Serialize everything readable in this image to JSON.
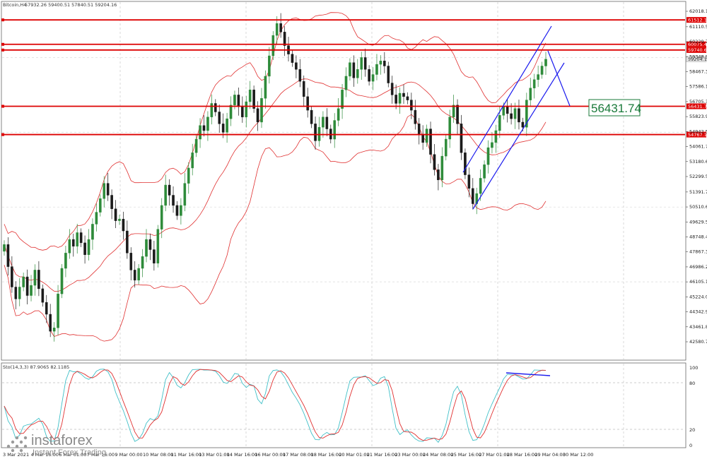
{
  "header": {
    "symbol": "Bitcoin,H4",
    "ohlc": "57932.26 59400.51 57840.51 59204.16"
  },
  "indicator": {
    "label": "Sto(14,3,3) 87.9065 82.1185",
    "levels": [
      "100",
      "80",
      "20",
      "0"
    ]
  },
  "callout": {
    "value": "56431.74"
  },
  "logo": {
    "text": "instaforex",
    "tagline": "Instant Forex Trading"
  },
  "colors": {
    "bull": "#2e8b3a",
    "bear": "#1b1b1b",
    "bands": "#e03030",
    "levels": "#dd0000",
    "channel": "#1a1aee",
    "stoch_main": "#e03030",
    "stoch_signal": "#40c0c8"
  },
  "chart_data": {
    "type": "candlestick",
    "price_axis": {
      "ticks": [
        "62018.10",
        "61110.50",
        "60229.70",
        "59348.90",
        "58467.30",
        "57586.10",
        "56705.30",
        "55823.90",
        "54942.50",
        "54061.70",
        "53180.60",
        "52299.50",
        "51391.70",
        "50510.60",
        "49629.50",
        "48748.40",
        "47867.30",
        "46986.20",
        "46105.10",
        "45224.00",
        "44342.90",
        "43461.80",
        "42580.70"
      ],
      "range": [
        42580.7,
        62018.1
      ]
    },
    "time_axis": {
      "ticks": [
        "3 Mar 2021",
        "4 Mar 16:00",
        "6 Mar 01:00",
        "7 Mar 16:00",
        "9 Mar 00:00",
        "10 Mar 08:00",
        "11 Mar 16:00",
        "13 Mar 01:00",
        "14 Mar 16:00",
        "16 Mar 00:00",
        "17 Mar 08:00",
        "18 Mar 16:00",
        "20 Mar 01:00",
        "21 Mar 16:00",
        "23 Mar 00:00",
        "24 Mar 08:00",
        "25 Mar 16:00",
        "27 Mar 01:00",
        "28 Mar 16:00",
        "29 Mar 04:00",
        "30 Mar 12:00"
      ]
    },
    "levels": [
      {
        "value": 61512.19,
        "label": "61512.19"
      },
      {
        "value": 60075.44,
        "label": "60075.44"
      },
      {
        "value": 59740.64,
        "label": "59740.64"
      },
      {
        "value": 56431.74,
        "label": "56431.74"
      },
      {
        "value": 54767.17,
        "label": "54767.17"
      }
    ],
    "last_price": {
      "value": 59204.16,
      "label": "59204.16"
    },
    "closes": [
      48300,
      47000,
      45800,
      45100,
      45800,
      46400,
      45300,
      45900,
      46800,
      45700,
      44900,
      44200,
      43200,
      43400,
      45400,
      46900,
      47800,
      48600,
      48200,
      49000,
      48400,
      47700,
      48600,
      49500,
      50200,
      51000,
      51900,
      51200,
      50400,
      49700,
      49800,
      49100,
      47800,
      46800,
      46200,
      46900,
      47600,
      48600,
      48000,
      47200,
      49200,
      50600,
      51800,
      51200,
      50600,
      50000,
      50600,
      51900,
      52800,
      53700,
      54500,
      55300,
      55000,
      55800,
      56600,
      56100,
      55400,
      54900,
      55700,
      56500,
      57100,
      56400,
      55800,
      56700,
      57400,
      56300,
      55500,
      56900,
      58200,
      59400,
      60600,
      61300,
      60800,
      60000,
      59500,
      59000,
      58600,
      57900,
      57000,
      56200,
      55400,
      54400,
      55200,
      55800,
      55100,
      54500,
      55600,
      56300,
      57400,
      58200,
      59000,
      58100,
      58600,
      59300,
      58600,
      57900,
      58300,
      58900,
      59100,
      58800,
      57800,
      57100,
      56600,
      57200,
      57000,
      56800,
      56200,
      55400,
      54800,
      54300,
      55100,
      53600,
      52700,
      52100,
      53500,
      54500,
      55800,
      56500,
      55400,
      53700,
      52400,
      51600,
      50700,
      51300,
      52200,
      53000,
      54000,
      54300,
      55000,
      55900,
      56400,
      56000,
      55700,
      56300,
      55500,
      55200,
      56800,
      57500,
      58000,
      58300,
      58800,
      59204
    ]
  }
}
